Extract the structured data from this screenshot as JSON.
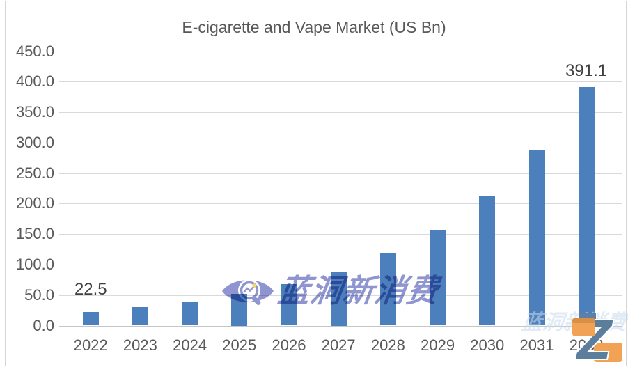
{
  "page": {
    "background": "#FFFFFF",
    "border_color": "#D5D5D5"
  },
  "chart_data": {
    "type": "bar",
    "title": "E-cigarette and Vape Market (US Bn)",
    "xlabel": "",
    "ylabel": "",
    "categories": [
      "2022",
      "2023",
      "2024",
      "2025",
      "2026",
      "2027",
      "2028",
      "2029",
      "2030",
      "2031",
      "2032"
    ],
    "values": [
      22.5,
      30.0,
      39.7,
      52.0,
      67.5,
      88.5,
      118.0,
      157.5,
      212.0,
      288.0,
      391.1
    ],
    "ylim": [
      0,
      450
    ],
    "y_ticks": [
      "450.0",
      "400.0",
      "350.0",
      "300.0",
      "250.0",
      "200.0",
      "150.0",
      "100.0",
      "50.0",
      "0.0"
    ],
    "grid": "horizontal",
    "legend": "none",
    "bar_color": "#4C80BC",
    "gridline_color": "#D9D9D9",
    "axis_text_color": "#595959",
    "title_color": "#595959",
    "data_label_color": "#3F3F3F",
    "data_labels": [
      {
        "category": "2022",
        "text": "22.5",
        "lift": 32
      },
      {
        "category": "2032",
        "text": "391.1",
        "lift": 23
      }
    ]
  },
  "watermark": {
    "icon": "eye-magnifier-icon",
    "text": "蓝洞新消费",
    "color": "#7B82C8",
    "dot_color": "#F2CF4A"
  },
  "watermark_ghost": {
    "text": "蓝洞新消费",
    "color": "#CADCF0"
  },
  "corner_logo": {
    "letter": "Z",
    "orange": "#F2A254",
    "orange_dark": "#D88F47",
    "slate": "#5C7E9D",
    "blue_strip": "#5B80A8"
  }
}
